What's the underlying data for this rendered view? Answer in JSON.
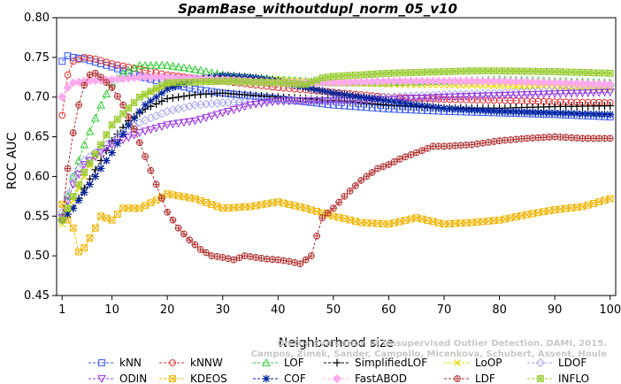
{
  "chart_data": {
    "type": "line",
    "title": "SpamBase_withoutdupl_norm_05_v10",
    "xlabel": "Neighborhood size",
    "ylabel": "ROC AUC",
    "xlim": [
      0,
      101
    ],
    "ylim": [
      0.45,
      0.8
    ],
    "xticks": [
      1,
      10,
      20,
      30,
      40,
      50,
      60,
      70,
      80,
      90,
      100
    ],
    "yticks": [
      0.45,
      0.5,
      0.55,
      0.6,
      0.65,
      0.7,
      0.75,
      0.8
    ],
    "ytick_labels": [
      "0.45",
      "0.50",
      "0.55",
      "0.60",
      "0.65",
      "0.70",
      "0.75",
      "0.80"
    ],
    "grid": false,
    "legend_position": "bottom",
    "watermark": [
      "Campos, Zimek, Sander, Campello, Micenkova, Schubert, Assent, Houle",
      "On the Evaluation of Unsupervised Outlier Detection. DAMI, 2015."
    ],
    "series": [
      {
        "name": "kNN",
        "color": "#3355ff",
        "marker": "square",
        "points": [
          [
            1,
            0.745
          ],
          [
            2,
            0.752
          ],
          [
            3,
            0.75
          ],
          [
            5,
            0.748
          ],
          [
            8,
            0.742
          ],
          [
            10,
            0.738
          ],
          [
            15,
            0.726
          ],
          [
            20,
            0.717
          ],
          [
            25,
            0.71
          ],
          [
            30,
            0.705
          ],
          [
            40,
            0.698
          ],
          [
            50,
            0.69
          ],
          [
            60,
            0.685
          ],
          [
            70,
            0.682
          ],
          [
            80,
            0.68
          ],
          [
            90,
            0.678
          ],
          [
            100,
            0.675
          ]
        ]
      },
      {
        "name": "kNNW",
        "color": "#e03030",
        "marker": "circle",
        "points": [
          [
            1,
            0.677
          ],
          [
            2,
            0.728
          ],
          [
            3,
            0.745
          ],
          [
            5,
            0.75
          ],
          [
            7,
            0.748
          ],
          [
            10,
            0.742
          ],
          [
            15,
            0.735
          ],
          [
            20,
            0.728
          ],
          [
            30,
            0.72
          ],
          [
            40,
            0.712
          ],
          [
            50,
            0.706
          ],
          [
            60,
            0.7
          ],
          [
            70,
            0.697
          ],
          [
            80,
            0.696
          ],
          [
            90,
            0.694
          ],
          [
            100,
            0.693
          ]
        ]
      },
      {
        "name": "LOF",
        "color": "#33cc33",
        "marker": "triangle",
        "points": [
          [
            1,
            0.55
          ],
          [
            3,
            0.6
          ],
          [
            5,
            0.64
          ],
          [
            8,
            0.69
          ],
          [
            10,
            0.718
          ],
          [
            12,
            0.73
          ],
          [
            15,
            0.74
          ],
          [
            20,
            0.74
          ],
          [
            25,
            0.735
          ],
          [
            30,
            0.728
          ],
          [
            40,
            0.722
          ],
          [
            50,
            0.718
          ],
          [
            60,
            0.718
          ],
          [
            70,
            0.72
          ],
          [
            80,
            0.722
          ],
          [
            90,
            0.72
          ],
          [
            100,
            0.718
          ]
        ]
      },
      {
        "name": "SimplifiedLOF",
        "color": "#000000",
        "marker": "plus",
        "points": [
          [
            1,
            0.545
          ],
          [
            3,
            0.56
          ],
          [
            5,
            0.585
          ],
          [
            8,
            0.62
          ],
          [
            10,
            0.645
          ],
          [
            13,
            0.67
          ],
          [
            16,
            0.685
          ],
          [
            20,
            0.698
          ],
          [
            25,
            0.703
          ],
          [
            30,
            0.705
          ],
          [
            40,
            0.7
          ],
          [
            50,
            0.696
          ],
          [
            60,
            0.69
          ],
          [
            70,
            0.686
          ],
          [
            80,
            0.686
          ],
          [
            90,
            0.688
          ],
          [
            100,
            0.689
          ]
        ]
      },
      {
        "name": "LoOP",
        "color": "#e8d800",
        "marker": "x",
        "points": [
          [
            1,
            0.54
          ],
          [
            3,
            0.57
          ],
          [
            5,
            0.6
          ],
          [
            8,
            0.64
          ],
          [
            10,
            0.665
          ],
          [
            15,
            0.7
          ],
          [
            20,
            0.715
          ],
          [
            25,
            0.72
          ],
          [
            30,
            0.722
          ],
          [
            40,
            0.722
          ],
          [
            50,
            0.718
          ],
          [
            60,
            0.716
          ],
          [
            70,
            0.715
          ],
          [
            80,
            0.714
          ],
          [
            90,
            0.712
          ],
          [
            100,
            0.71
          ]
        ]
      },
      {
        "name": "LDOF",
        "color": "#aaaaee",
        "marker": "diamond",
        "points": [
          [
            1,
            0.555
          ],
          [
            3,
            0.6
          ],
          [
            5,
            0.62
          ],
          [
            8,
            0.635
          ],
          [
            10,
            0.645
          ],
          [
            15,
            0.668
          ],
          [
            20,
            0.682
          ],
          [
            25,
            0.69
          ],
          [
            30,
            0.693
          ],
          [
            40,
            0.695
          ],
          [
            50,
            0.697
          ],
          [
            60,
            0.7
          ],
          [
            70,
            0.703
          ],
          [
            80,
            0.705
          ],
          [
            90,
            0.708
          ],
          [
            100,
            0.71
          ]
        ]
      },
      {
        "name": "ODIN",
        "color": "#9933dd",
        "marker": "triangle-down",
        "points": [
          [
            1,
            0.548
          ],
          [
            3,
            0.59
          ],
          [
            5,
            0.615
          ],
          [
            8,
            0.63
          ],
          [
            10,
            0.64
          ],
          [
            15,
            0.655
          ],
          [
            20,
            0.665
          ],
          [
            25,
            0.67
          ],
          [
            30,
            0.68
          ],
          [
            35,
            0.69
          ],
          [
            40,
            0.695
          ],
          [
            50,
            0.695
          ],
          [
            60,
            0.697
          ],
          [
            70,
            0.7
          ],
          [
            80,
            0.702
          ],
          [
            90,
            0.704
          ],
          [
            100,
            0.706
          ]
        ]
      },
      {
        "name": "KDEOS",
        "color": "#f0b400",
        "marker": "square-x",
        "points": [
          [
            1,
            0.565
          ],
          [
            2,
            0.545
          ],
          [
            3,
            0.535
          ],
          [
            4,
            0.505
          ],
          [
            5,
            0.51
          ],
          [
            7,
            0.535
          ],
          [
            8,
            0.55
          ],
          [
            10,
            0.545
          ],
          [
            12,
            0.56
          ],
          [
            15,
            0.56
          ],
          [
            18,
            0.57
          ],
          [
            20,
            0.578
          ],
          [
            25,
            0.572
          ],
          [
            30,
            0.56
          ],
          [
            35,
            0.562
          ],
          [
            40,
            0.568
          ],
          [
            45,
            0.56
          ],
          [
            50,
            0.55
          ],
          [
            55,
            0.542
          ],
          [
            60,
            0.54
          ],
          [
            65,
            0.548
          ],
          [
            70,
            0.54
          ],
          [
            75,
            0.542
          ],
          [
            80,
            0.545
          ],
          [
            85,
            0.552
          ],
          [
            90,
            0.558
          ],
          [
            95,
            0.562
          ],
          [
            100,
            0.572
          ]
        ]
      },
      {
        "name": "COF",
        "color": "#002299",
        "marker": "star",
        "points": [
          [
            1,
            0.545
          ],
          [
            3,
            0.56
          ],
          [
            5,
            0.58
          ],
          [
            8,
            0.61
          ],
          [
            10,
            0.63
          ],
          [
            13,
            0.665
          ],
          [
            16,
            0.69
          ],
          [
            20,
            0.71
          ],
          [
            25,
            0.722
          ],
          [
            30,
            0.727
          ],
          [
            35,
            0.725
          ],
          [
            40,
            0.72
          ],
          [
            45,
            0.712
          ],
          [
            50,
            0.705
          ],
          [
            55,
            0.7
          ],
          [
            60,
            0.695
          ],
          [
            65,
            0.69
          ],
          [
            70,
            0.686
          ],
          [
            80,
            0.682
          ],
          [
            90,
            0.68
          ],
          [
            100,
            0.678
          ]
        ]
      },
      {
        "name": "FastABOD",
        "color": "#ffaaee",
        "marker": "diamond-filled",
        "points": [
          [
            1,
            0.7
          ],
          [
            2,
            0.712
          ],
          [
            3,
            0.718
          ],
          [
            5,
            0.72
          ],
          [
            10,
            0.722
          ],
          [
            15,
            0.725
          ],
          [
            20,
            0.725
          ],
          [
            30,
            0.722
          ],
          [
            40,
            0.718
          ],
          [
            50,
            0.718
          ],
          [
            60,
            0.72
          ],
          [
            70,
            0.72
          ],
          [
            80,
            0.72
          ],
          [
            90,
            0.718
          ],
          [
            100,
            0.716
          ]
        ]
      },
      {
        "name": "LDF",
        "color": "#b03030",
        "marker": "circle-plus",
        "points": [
          [
            1,
            0.545
          ],
          [
            2,
            0.61
          ],
          [
            3,
            0.655
          ],
          [
            4,
            0.69
          ],
          [
            5,
            0.715
          ],
          [
            6,
            0.728
          ],
          [
            7,
            0.73
          ],
          [
            8,
            0.725
          ],
          [
            10,
            0.712
          ],
          [
            12,
            0.69
          ],
          [
            14,
            0.66
          ],
          [
            16,
            0.625
          ],
          [
            18,
            0.59
          ],
          [
            20,
            0.555
          ],
          [
            22,
            0.535
          ],
          [
            24,
            0.52
          ],
          [
            26,
            0.508
          ],
          [
            28,
            0.5
          ],
          [
            30,
            0.498
          ],
          [
            32,
            0.495
          ],
          [
            34,
            0.5
          ],
          [
            36,
            0.498
          ],
          [
            38,
            0.496
          ],
          [
            40,
            0.495
          ],
          [
            42,
            0.493
          ],
          [
            44,
            0.49
          ],
          [
            46,
            0.5
          ],
          [
            47,
            0.525
          ],
          [
            48,
            0.548
          ],
          [
            50,
            0.56
          ],
          [
            52,
            0.575
          ],
          [
            55,
            0.595
          ],
          [
            58,
            0.61
          ],
          [
            60,
            0.615
          ],
          [
            62,
            0.622
          ],
          [
            65,
            0.63
          ],
          [
            68,
            0.638
          ],
          [
            70,
            0.638
          ],
          [
            75,
            0.64
          ],
          [
            80,
            0.645
          ],
          [
            85,
            0.648
          ],
          [
            90,
            0.65
          ],
          [
            95,
            0.648
          ],
          [
            100,
            0.648
          ]
        ]
      },
      {
        "name": "INFLO",
        "color": "#99cc33",
        "marker": "square-star",
        "points": [
          [
            1,
            0.545
          ],
          [
            3,
            0.575
          ],
          [
            5,
            0.605
          ],
          [
            8,
            0.64
          ],
          [
            10,
            0.665
          ],
          [
            15,
            0.7
          ],
          [
            20,
            0.718
          ],
          [
            30,
            0.72
          ],
          [
            40,
            0.718
          ],
          [
            45,
            0.716
          ],
          [
            48,
            0.724
          ],
          [
            50,
            0.726
          ],
          [
            55,
            0.728
          ],
          [
            60,
            0.73
          ],
          [
            70,
            0.732
          ],
          [
            75,
            0.733
          ],
          [
            80,
            0.733
          ],
          [
            90,
            0.732
          ],
          [
            100,
            0.73
          ]
        ]
      }
    ]
  }
}
